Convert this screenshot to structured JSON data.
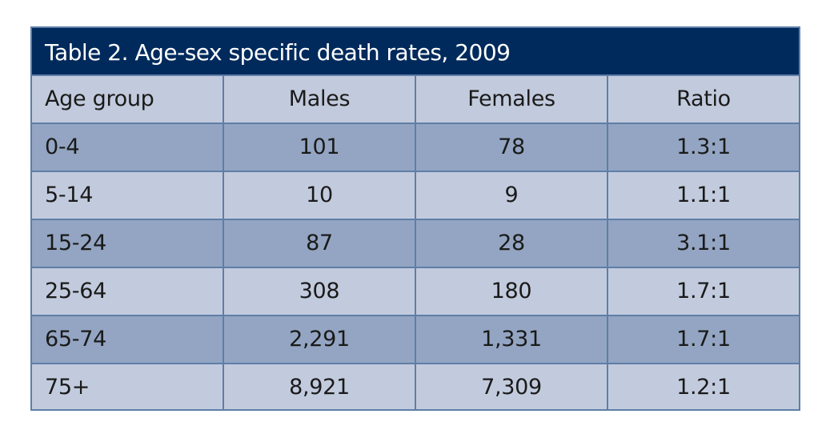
{
  "table": {
    "title_prefix": "Table 2.",
    "title_text": "Age-sex specific death rates, 2009",
    "headers": [
      "Age group",
      "Males",
      "Females",
      "Ratio"
    ],
    "rows": [
      [
        "0-4",
        "101",
        "78",
        "1.3:1"
      ],
      [
        "5-14",
        "10",
        "9",
        "1.1:1"
      ],
      [
        "15-24",
        "87",
        "28",
        "3.1:1"
      ],
      [
        "25-64",
        "308",
        "180",
        "1.7:1"
      ],
      [
        "65-74",
        "2,291",
        "1,331",
        "1.7:1"
      ],
      [
        "75+",
        "8,921",
        "7,309",
        "1.2:1"
      ]
    ]
  },
  "colors": {
    "title_bg": "#002a5c",
    "row_light": "#c2cbdd",
    "row_dark": "#93a5c2",
    "border": "#5f7ea8"
  }
}
